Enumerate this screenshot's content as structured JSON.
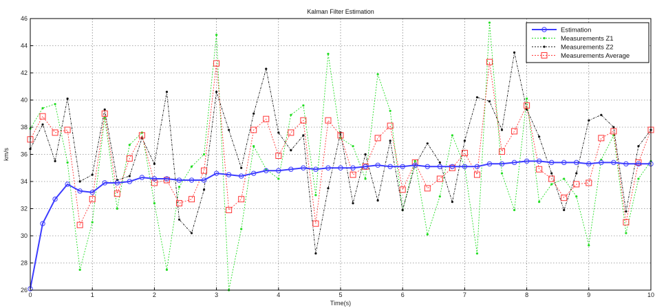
{
  "chart_data": {
    "type": "line",
    "title": "Kalman Filter Estimation",
    "xlabel": "Time(s)",
    "ylabel": "km/s",
    "xlim": [
      0,
      10
    ],
    "ylim": [
      26,
      46
    ],
    "xticks": [
      "0",
      "1",
      "2",
      "3",
      "4",
      "5",
      "6",
      "7",
      "8",
      "9",
      "10"
    ],
    "yticks": [
      "26",
      "28",
      "30",
      "32",
      "34",
      "36",
      "38",
      "40",
      "42",
      "44",
      "46"
    ],
    "grid": true,
    "legend_position": "top-right",
    "x": [
      0,
      0.2,
      0.4,
      0.6,
      0.8,
      1.0,
      1.2,
      1.4,
      1.6,
      1.8,
      2.0,
      2.2,
      2.4,
      2.6,
      2.8,
      3.0,
      3.2,
      3.4,
      3.6,
      3.8,
      4.0,
      4.2,
      4.4,
      4.6,
      4.8,
      5.0,
      5.2,
      5.4,
      5.6,
      5.8,
      6.0,
      6.2,
      6.4,
      6.6,
      6.8,
      7.0,
      7.2,
      7.4,
      7.6,
      7.8,
      8.0,
      8.2,
      8.4,
      8.6,
      8.8,
      9.0,
      9.2,
      9.4,
      9.6,
      9.8,
      10.0
    ],
    "series": [
      {
        "name": "Estimation",
        "color": "#3b3bff",
        "marker": "circle",
        "values": [
          26.1,
          30.9,
          32.7,
          33.8,
          33.3,
          33.2,
          33.9,
          33.9,
          34.0,
          34.3,
          34.2,
          34.2,
          34.1,
          34.1,
          34.1,
          34.6,
          34.5,
          34.4,
          34.6,
          34.8,
          34.8,
          34.9,
          35.0,
          34.9,
          35.0,
          35.0,
          35.0,
          35.1,
          35.2,
          35.1,
          35.1,
          35.2,
          35.1,
          35.1,
          35.1,
          35.1,
          35.1,
          35.3,
          35.3,
          35.4,
          35.5,
          35.5,
          35.4,
          35.4,
          35.4,
          35.3,
          35.4,
          35.4,
          35.3,
          35.3,
          35.3
        ]
      },
      {
        "name": "Measurements Z1",
        "color": "#22dd22",
        "marker": "point",
        "values": [
          37.9,
          39.4,
          39.7,
          35.4,
          27.5,
          31.0,
          38.7,
          32.0,
          36.7,
          37.6,
          32.4,
          27.5,
          33.6,
          35.1,
          36.0,
          44.8,
          26.0,
          30.5,
          36.6,
          34.9,
          34.2,
          38.9,
          39.6,
          33.0,
          43.4,
          37.2,
          36.6,
          34.2,
          41.9,
          39.2,
          31.9,
          35.5,
          30.1,
          32.9,
          37.4,
          35.1,
          28.7,
          45.7,
          34.6,
          31.9,
          40.1,
          32.5,
          33.8,
          34.2,
          32.9,
          29.3,
          35.6,
          37.4,
          30.2,
          34.2,
          35.5
        ]
      },
      {
        "name": "Measurements Z2",
        "color": "#111111",
        "marker": "point",
        "values": [
          36.4,
          38.2,
          35.5,
          40.1,
          34.0,
          34.5,
          39.3,
          34.1,
          34.4,
          37.2,
          35.3,
          40.6,
          31.2,
          30.2,
          33.4,
          40.6,
          37.8,
          35.0,
          39.0,
          42.3,
          37.6,
          36.3,
          37.4,
          28.7,
          33.5,
          37.6,
          32.4,
          36.0,
          32.6,
          37.0,
          31.9,
          35.2,
          36.8,
          35.4,
          32.5,
          37.0,
          40.2,
          39.9,
          37.8,
          43.5,
          39.3,
          37.3,
          34.6,
          31.9,
          34.6,
          38.5,
          38.9,
          38.0,
          31.8,
          36.6,
          37.8
        ]
      },
      {
        "name": "Measurements Average",
        "color": "#ff3333",
        "marker": "square",
        "values": [
          37.1,
          38.8,
          37.6,
          37.8,
          30.8,
          32.7,
          39.0,
          33.1,
          35.7,
          37.4,
          33.9,
          34.1,
          32.4,
          32.7,
          34.8,
          42.7,
          31.9,
          32.7,
          37.8,
          38.6,
          35.9,
          37.6,
          38.5,
          30.9,
          38.5,
          37.4,
          34.5,
          35.1,
          37.2,
          38.1,
          33.4,
          35.4,
          33.5,
          34.2,
          35.0,
          36.1,
          34.5,
          42.8,
          36.2,
          37.7,
          39.6,
          34.9,
          34.2,
          32.8,
          33.8,
          33.9,
          37.2,
          37.7,
          31.0,
          35.4,
          37.8
        ]
      }
    ]
  }
}
